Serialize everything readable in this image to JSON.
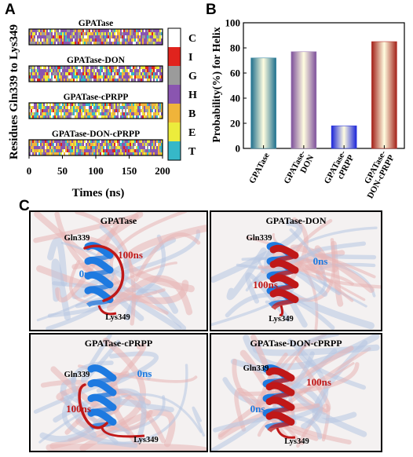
{
  "panel_letters": {
    "a": "A",
    "b": "B",
    "c": "C"
  },
  "chart_data": [
    {
      "type": "heatmap",
      "panel": "A",
      "ylabel": "Residues Gln339 to Lys349",
      "xlabel": "Times (ns)",
      "xlim": [
        0,
        200
      ],
      "xticks": [
        "0",
        "50",
        "100",
        "150",
        "200"
      ],
      "subplots": [
        {
          "title": "GPATase"
        },
        {
          "title": "GPATase-DON"
        },
        {
          "title": "GPATase-cPRPP"
        },
        {
          "title": "GPATase-DON-cPRPP"
        }
      ],
      "legend": [
        {
          "label": "C",
          "color": "#ffffff"
        },
        {
          "label": "I",
          "color": "#e0231d"
        },
        {
          "label": "G",
          "color": "#9b9b9b"
        },
        {
          "label": "H",
          "color": "#8a55b0"
        },
        {
          "label": "B",
          "color": "#f0b43a"
        },
        {
          "label": "E",
          "color": "#ecec3c"
        },
        {
          "label": "T",
          "color": "#36b8c8"
        }
      ]
    },
    {
      "type": "bar",
      "panel": "B",
      "categories": [
        "GPATase",
        "GPATase-\nDON",
        "GPATase-\ncPRPP",
        "GPATase-\nDON-cPRPP"
      ],
      "values": [
        72,
        77,
        18,
        85
      ],
      "ylabel": "Probability(%) for Helix",
      "ylim": [
        0,
        100
      ],
      "yticks": [
        "0",
        "20",
        "40",
        "60",
        "80",
        "100"
      ],
      "colors": [
        "#3a8aa6",
        "#a080b8",
        "#2a36e0",
        "#b8302a"
      ]
    }
  ],
  "panel_c": {
    "views": [
      {
        "title": "GPATase",
        "start": "Gln339",
        "end": "Lys349",
        "label_0": "0ns",
        "label_100": "100ns"
      },
      {
        "title": "GPATase-DON",
        "start": "Gln339",
        "end": "Lys349",
        "label_0": "0ns",
        "label_100": "100ns"
      },
      {
        "title": "GPATase-cPRPP",
        "start": "Gln339",
        "end": "Lys349",
        "label_0": "0ns",
        "label_100": "100ns"
      },
      {
        "title": "GPATase-DON-cPRPP",
        "start": "Gln339",
        "end": "Lys349",
        "label_0": "0ns",
        "label_100": "100ns"
      }
    ],
    "colors": {
      "ns0": "#1e7ae0",
      "ns100": "#c01818"
    }
  }
}
